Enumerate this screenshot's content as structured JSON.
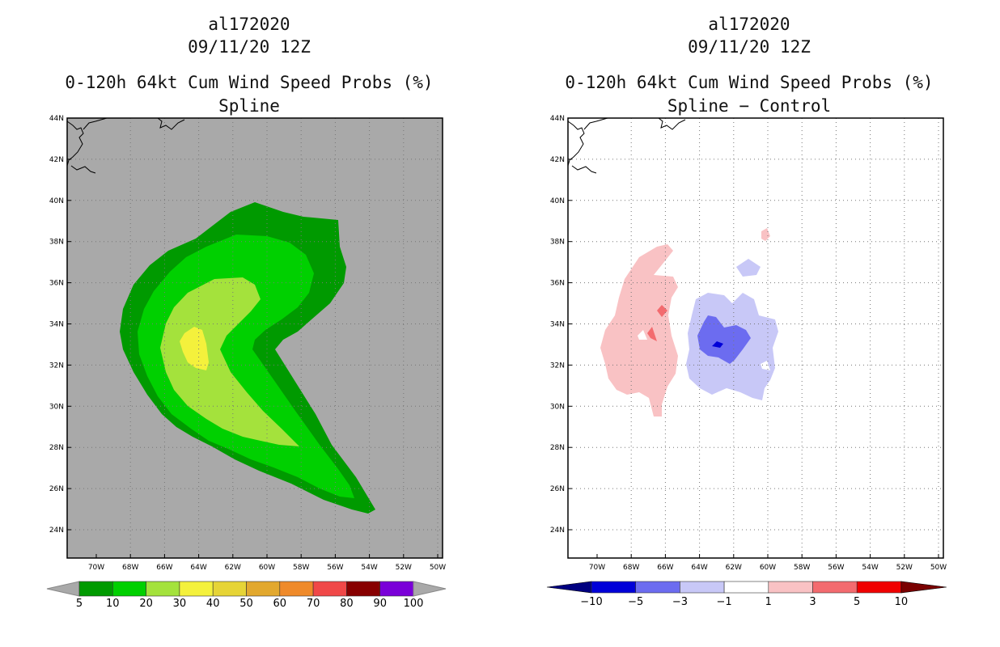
{
  "left_panel": {
    "storm_id": "al172020",
    "datetime": "09/11/20 12Z",
    "product": "0-120h 64kt Cum Wind Speed Probs (%)",
    "subtitle": "Spline"
  },
  "right_panel": {
    "storm_id": "al172020",
    "datetime": "09/11/20 12Z",
    "product": "0-120h 64kt Cum Wind Speed Probs (%)",
    "subtitle": "Spline − Control"
  },
  "axes": {
    "lat_labels": [
      "44N",
      "42N",
      "40N",
      "38N",
      "36N",
      "34N",
      "32N",
      "30N",
      "28N",
      "26N",
      "24N"
    ],
    "lon_labels": [
      "70W",
      "68W",
      "66W",
      "64W",
      "62W",
      "60W",
      "58W",
      "56W",
      "54W",
      "52W",
      "50W"
    ]
  },
  "colors": {
    "land_background": "#a9a9a9",
    "prob_5": "#009a00",
    "prob_10": "#00d000",
    "prob_20": "#a4e23c",
    "prob_30": "#f4f13c",
    "diff_pos_1": "#f9c2c4",
    "diff_pos_3": "#f36b6f",
    "diff_neg_1": "#c8c8f7",
    "diff_neg_3": "#6c6cf0",
    "diff_neg_5": "#0000d8"
  },
  "left_colorbar": {
    "labels": [
      "5",
      "10",
      "20",
      "30",
      "40",
      "50",
      "60",
      "70",
      "80",
      "90",
      "100"
    ],
    "colors": [
      "#009a00",
      "#00d000",
      "#a4e23c",
      "#f4f13c",
      "#e6d436",
      "#e2a82e",
      "#ef8a2a",
      "#f04848",
      "#870000",
      "#7a00d8"
    ]
  },
  "right_colorbar": {
    "labels": [
      "−10",
      "−5",
      "−3",
      "−1",
      "1",
      "3",
      "5",
      "10"
    ],
    "colors": [
      "#0000d8",
      "#6c6cf0",
      "#c8c8f7",
      "#ffffff",
      "#f9c2c4",
      "#f36b6f",
      "#f00000"
    ],
    "end_low": "#000080",
    "end_high": "#7a0000"
  }
}
